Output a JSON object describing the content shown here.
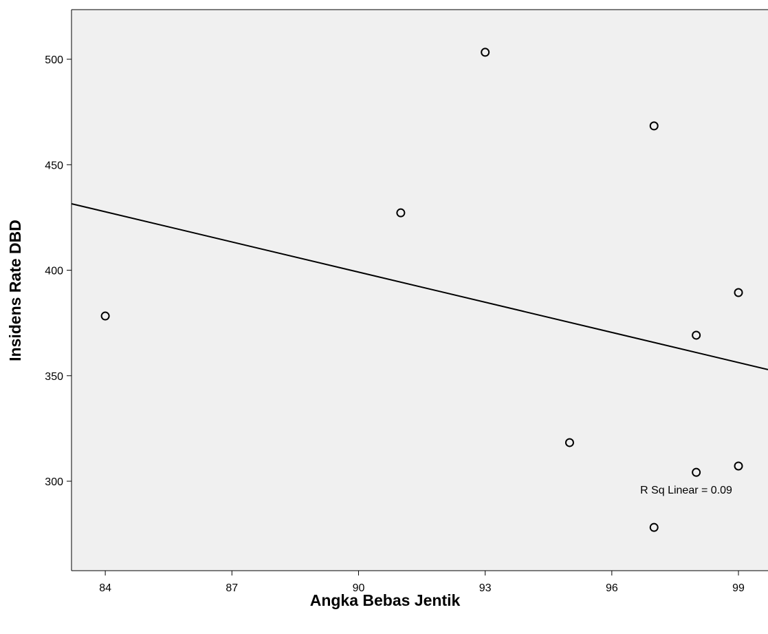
{
  "chart_data": {
    "type": "scatter",
    "x_label": "Angka Bebas Jentik",
    "y_label": "Insidens Rate DBD",
    "annotation": "R Sq Linear = 0.09",
    "x": [
      84,
      91,
      93,
      97,
      99,
      98,
      95,
      99,
      98,
      97
    ],
    "values": [
      378.3,
      427.2,
      503.3,
      468.4,
      389.4,
      369.2,
      318.3,
      307.2,
      304.2,
      278.1
    ],
    "color": "#000000",
    "trendline": {
      "x": [
        83.2,
        99.7
      ],
      "y": [
        431.5,
        352.9
      ]
    },
    "xlim": [
      83.2,
      99.7
    ],
    "ylim": [
      257.6,
      523.5
    ],
    "xticks": [
      84,
      87,
      90,
      93,
      96,
      99
    ],
    "yticks": [
      300,
      350,
      400,
      450,
      500
    ]
  }
}
